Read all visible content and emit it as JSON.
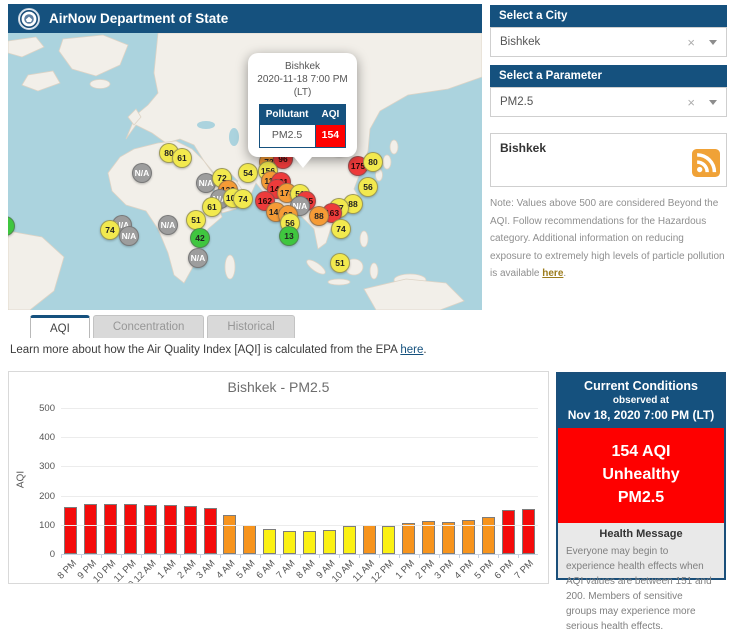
{
  "header": {
    "title": "AirNow Department of State"
  },
  "icons": {
    "clear": "×"
  },
  "map": {
    "popup": {
      "city": "Bishkek",
      "datetime": "2020-11-18 7:00 PM",
      "timezone": "(LT)",
      "table": {
        "pollutant_header": "Pollutant",
        "aqi_header": "AQI",
        "pollutant": "PM2.5",
        "aqi": "154"
      }
    },
    "markers": [
      {
        "label": "80",
        "level": "yellow",
        "x": 161,
        "y": 120
      },
      {
        "label": "61",
        "level": "yellow",
        "x": 174,
        "y": 125
      },
      {
        "label": "N/A",
        "level": "gray",
        "x": 134,
        "y": 140
      },
      {
        "label": "N/A",
        "level": "gray",
        "x": 198,
        "y": 150
      },
      {
        "label": "72",
        "level": "yellow",
        "x": 214,
        "y": 145
      },
      {
        "label": "120",
        "level": "orange",
        "x": 220,
        "y": 157
      },
      {
        "label": "N/A",
        "level": "gray",
        "x": 212,
        "y": 166
      },
      {
        "label": "101",
        "level": "yellow",
        "x": 225,
        "y": 165
      },
      {
        "label": "74",
        "level": "yellow",
        "x": 235,
        "y": 166
      },
      {
        "label": "61",
        "level": "yellow",
        "x": 204,
        "y": 174
      },
      {
        "label": "51",
        "level": "yellow",
        "x": 188,
        "y": 187
      },
      {
        "label": "N/A",
        "level": "gray",
        "x": 114,
        "y": 192
      },
      {
        "label": "74",
        "level": "yellow",
        "x": 102,
        "y": 197
      },
      {
        "label": "N/A",
        "level": "gray",
        "x": 121,
        "y": 203
      },
      {
        "label": "N/A",
        "level": "gray",
        "x": 160,
        "y": 192
      },
      {
        "label": "42",
        "level": "green",
        "x": 192,
        "y": 205
      },
      {
        "label": "N/A",
        "level": "gray",
        "x": 190,
        "y": 225
      },
      {
        "label": "",
        "level": "green",
        "x": -3,
        "y": 193
      },
      {
        "label": "54",
        "level": "yellow",
        "x": 240,
        "y": 140
      },
      {
        "label": "73",
        "level": "orange",
        "x": 261,
        "y": 129
      },
      {
        "label": "96",
        "level": "red",
        "x": 275,
        "y": 126
      },
      {
        "label": "156",
        "level": "yellow",
        "x": 260,
        "y": 138
      },
      {
        "label": "111",
        "level": "orange",
        "x": 263,
        "y": 148
      },
      {
        "label": "131",
        "level": "red",
        "x": 273,
        "y": 149
      },
      {
        "label": "143",
        "level": "red",
        "x": 269,
        "y": 156
      },
      {
        "label": "173",
        "level": "orange",
        "x": 279,
        "y": 160
      },
      {
        "label": "162",
        "level": "red",
        "x": 257,
        "y": 168
      },
      {
        "label": "51",
        "level": "yellow",
        "x": 292,
        "y": 161
      },
      {
        "label": "165",
        "level": "red",
        "x": 298,
        "y": 168
      },
      {
        "label": "N/A",
        "level": "gray",
        "x": 292,
        "y": 173
      },
      {
        "label": "141",
        "level": "orange",
        "x": 268,
        "y": 179
      },
      {
        "label": "68",
        "level": "orange",
        "x": 280,
        "y": 182
      },
      {
        "label": "56",
        "level": "yellow",
        "x": 282,
        "y": 190
      },
      {
        "label": "13",
        "level": "green",
        "x": 281,
        "y": 203
      },
      {
        "label": "28",
        "level": "green",
        "x": 331,
        "y": 113
      },
      {
        "label": "175",
        "level": "red",
        "x": 350,
        "y": 133
      },
      {
        "label": "80",
        "level": "yellow",
        "x": 365,
        "y": 129
      },
      {
        "label": "56",
        "level": "yellow",
        "x": 360,
        "y": 154
      },
      {
        "label": "88",
        "level": "yellow",
        "x": 345,
        "y": 171
      },
      {
        "label": "77",
        "level": "yellow",
        "x": 331,
        "y": 175
      },
      {
        "label": "163",
        "level": "red",
        "x": 324,
        "y": 180
      },
      {
        "label": "88",
        "level": "orange",
        "x": 311,
        "y": 183
      },
      {
        "label": "74",
        "level": "yellow",
        "x": 333,
        "y": 196
      },
      {
        "label": "51",
        "level": "yellow",
        "x": 332,
        "y": 230
      }
    ]
  },
  "tabs": [
    {
      "label": "AQI",
      "active": true
    },
    {
      "label": "Concentration",
      "active": false
    },
    {
      "label": "Historical",
      "active": false
    }
  ],
  "learn_more": {
    "text_before": "Learn more about how the Air Quality Index [AQI] is calculated from the EPA ",
    "link": "here",
    "text_after": "."
  },
  "chart_data": {
    "type": "bar",
    "title": "Bishkek - PM2.5",
    "xlabel": "",
    "ylabel": "AQI",
    "ylim": [
      0,
      500
    ],
    "yticks": [
      0,
      100,
      200,
      300,
      400,
      500
    ],
    "grid": true,
    "categories": [
      "8 PM",
      "9 PM",
      "10 PM",
      "11 PM",
      ". 18, 2020 12 AM",
      "1 AM",
      "2 AM",
      "3 AM",
      "4 AM",
      "5 AM",
      "6 AM",
      "7 AM",
      "8 AM",
      "9 AM",
      "10 AM",
      "11 AM",
      "12 PM",
      "1 PM",
      "2 PM",
      "3 PM",
      "4 PM",
      "5 PM",
      "6 PM",
      "7 PM"
    ],
    "values": [
      162,
      170,
      170,
      170,
      168,
      168,
      165,
      157,
      135,
      101,
      85,
      80,
      78,
      83,
      95,
      101,
      97,
      107,
      112,
      110,
      116,
      128,
      150,
      154
    ],
    "colors": [
      "red",
      "red",
      "red",
      "red",
      "red",
      "red",
      "red",
      "red",
      "orange",
      "orange",
      "yellow",
      "yellow",
      "yellow",
      "yellow",
      "yellow",
      "orange",
      "yellow",
      "orange",
      "orange",
      "orange",
      "orange",
      "orange",
      "red",
      "red"
    ]
  },
  "palette": {
    "header_blue": "#15517e",
    "aqi_red": "#fe0000",
    "bar_red": "#f40b0b",
    "bar_orange": "#f7941d",
    "bar_yellow": "#fbf113"
  },
  "sidebar": {
    "city": {
      "header": "Select a City",
      "value": "Bishkek"
    },
    "parameter": {
      "header": "Select a Parameter",
      "value": "PM2.5"
    },
    "feed": {
      "city": "Bishkek"
    },
    "note": {
      "text_before": "Note: Values above 500 are considered Beyond the AQI. Follow recommendations for the Hazardous category. Additional information on reducing exposure to extremely high levels of particle pollution is available ",
      "link": "here",
      "text_after": "."
    }
  },
  "current_conditions": {
    "title": "Current Conditions",
    "observed_at_label": "observed at",
    "observed_at": "Nov 18, 2020 7:00 PM (LT)",
    "aqi": "154 AQI",
    "category": "Unhealthy",
    "parameter": "PM2.5",
    "health_message_title": "Health Message",
    "health_message": "Everyone may begin to experience health effects when AQI values are between 151 and 200. Members of sensitive groups may experience more serious health effects."
  }
}
